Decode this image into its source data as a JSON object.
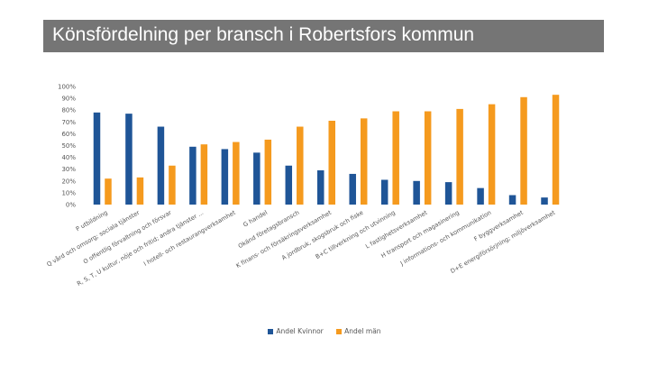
{
  "title": "Könsfördelning per bransch i Robertsfors kommun",
  "colors": {
    "women": "#1F5597",
    "men": "#F59A1E"
  },
  "chart_data": {
    "type": "bar",
    "title": "",
    "xlabel": "",
    "ylabel": "",
    "ylim": [
      0,
      100
    ],
    "y_ticks": [
      "100%",
      "90%",
      "80%",
      "70%",
      "60%",
      "50%",
      "40%",
      "30%",
      "20%",
      "10%",
      "0%"
    ],
    "grid": false,
    "legend_position": "bottom",
    "categories": [
      "P utbildning",
      "Q vård och omsorg; sociala tjänster",
      "O offentlig förvaltning och försvar",
      "R, S, T, U kultur, nöje och fritid; andra tjänster ...",
      "I hotell- och restaurangverksamhet",
      "G handel",
      "Okänd företagsbransch",
      "K finans- och försäkringsverksamhet",
      "A jordbruk, skogsbruk och fiske",
      "B+C tillverkning och utvinning",
      "L fastighetsverksamhet",
      "H transport och magasinering",
      "J informations- och kommunikation",
      "F byggverksamhet",
      "D+E energiförsörjning; miljöverksamhet"
    ],
    "series": [
      {
        "name": "Andel Kvinnor",
        "values": [
          78,
          77,
          66,
          49,
          47,
          44,
          33,
          29,
          26,
          21,
          20,
          19,
          14,
          8,
          6
        ]
      },
      {
        "name": "Andel män",
        "values": [
          22,
          23,
          33,
          51,
          53,
          55,
          66,
          71,
          73,
          79,
          79,
          81,
          85,
          91,
          93
        ]
      }
    ]
  }
}
